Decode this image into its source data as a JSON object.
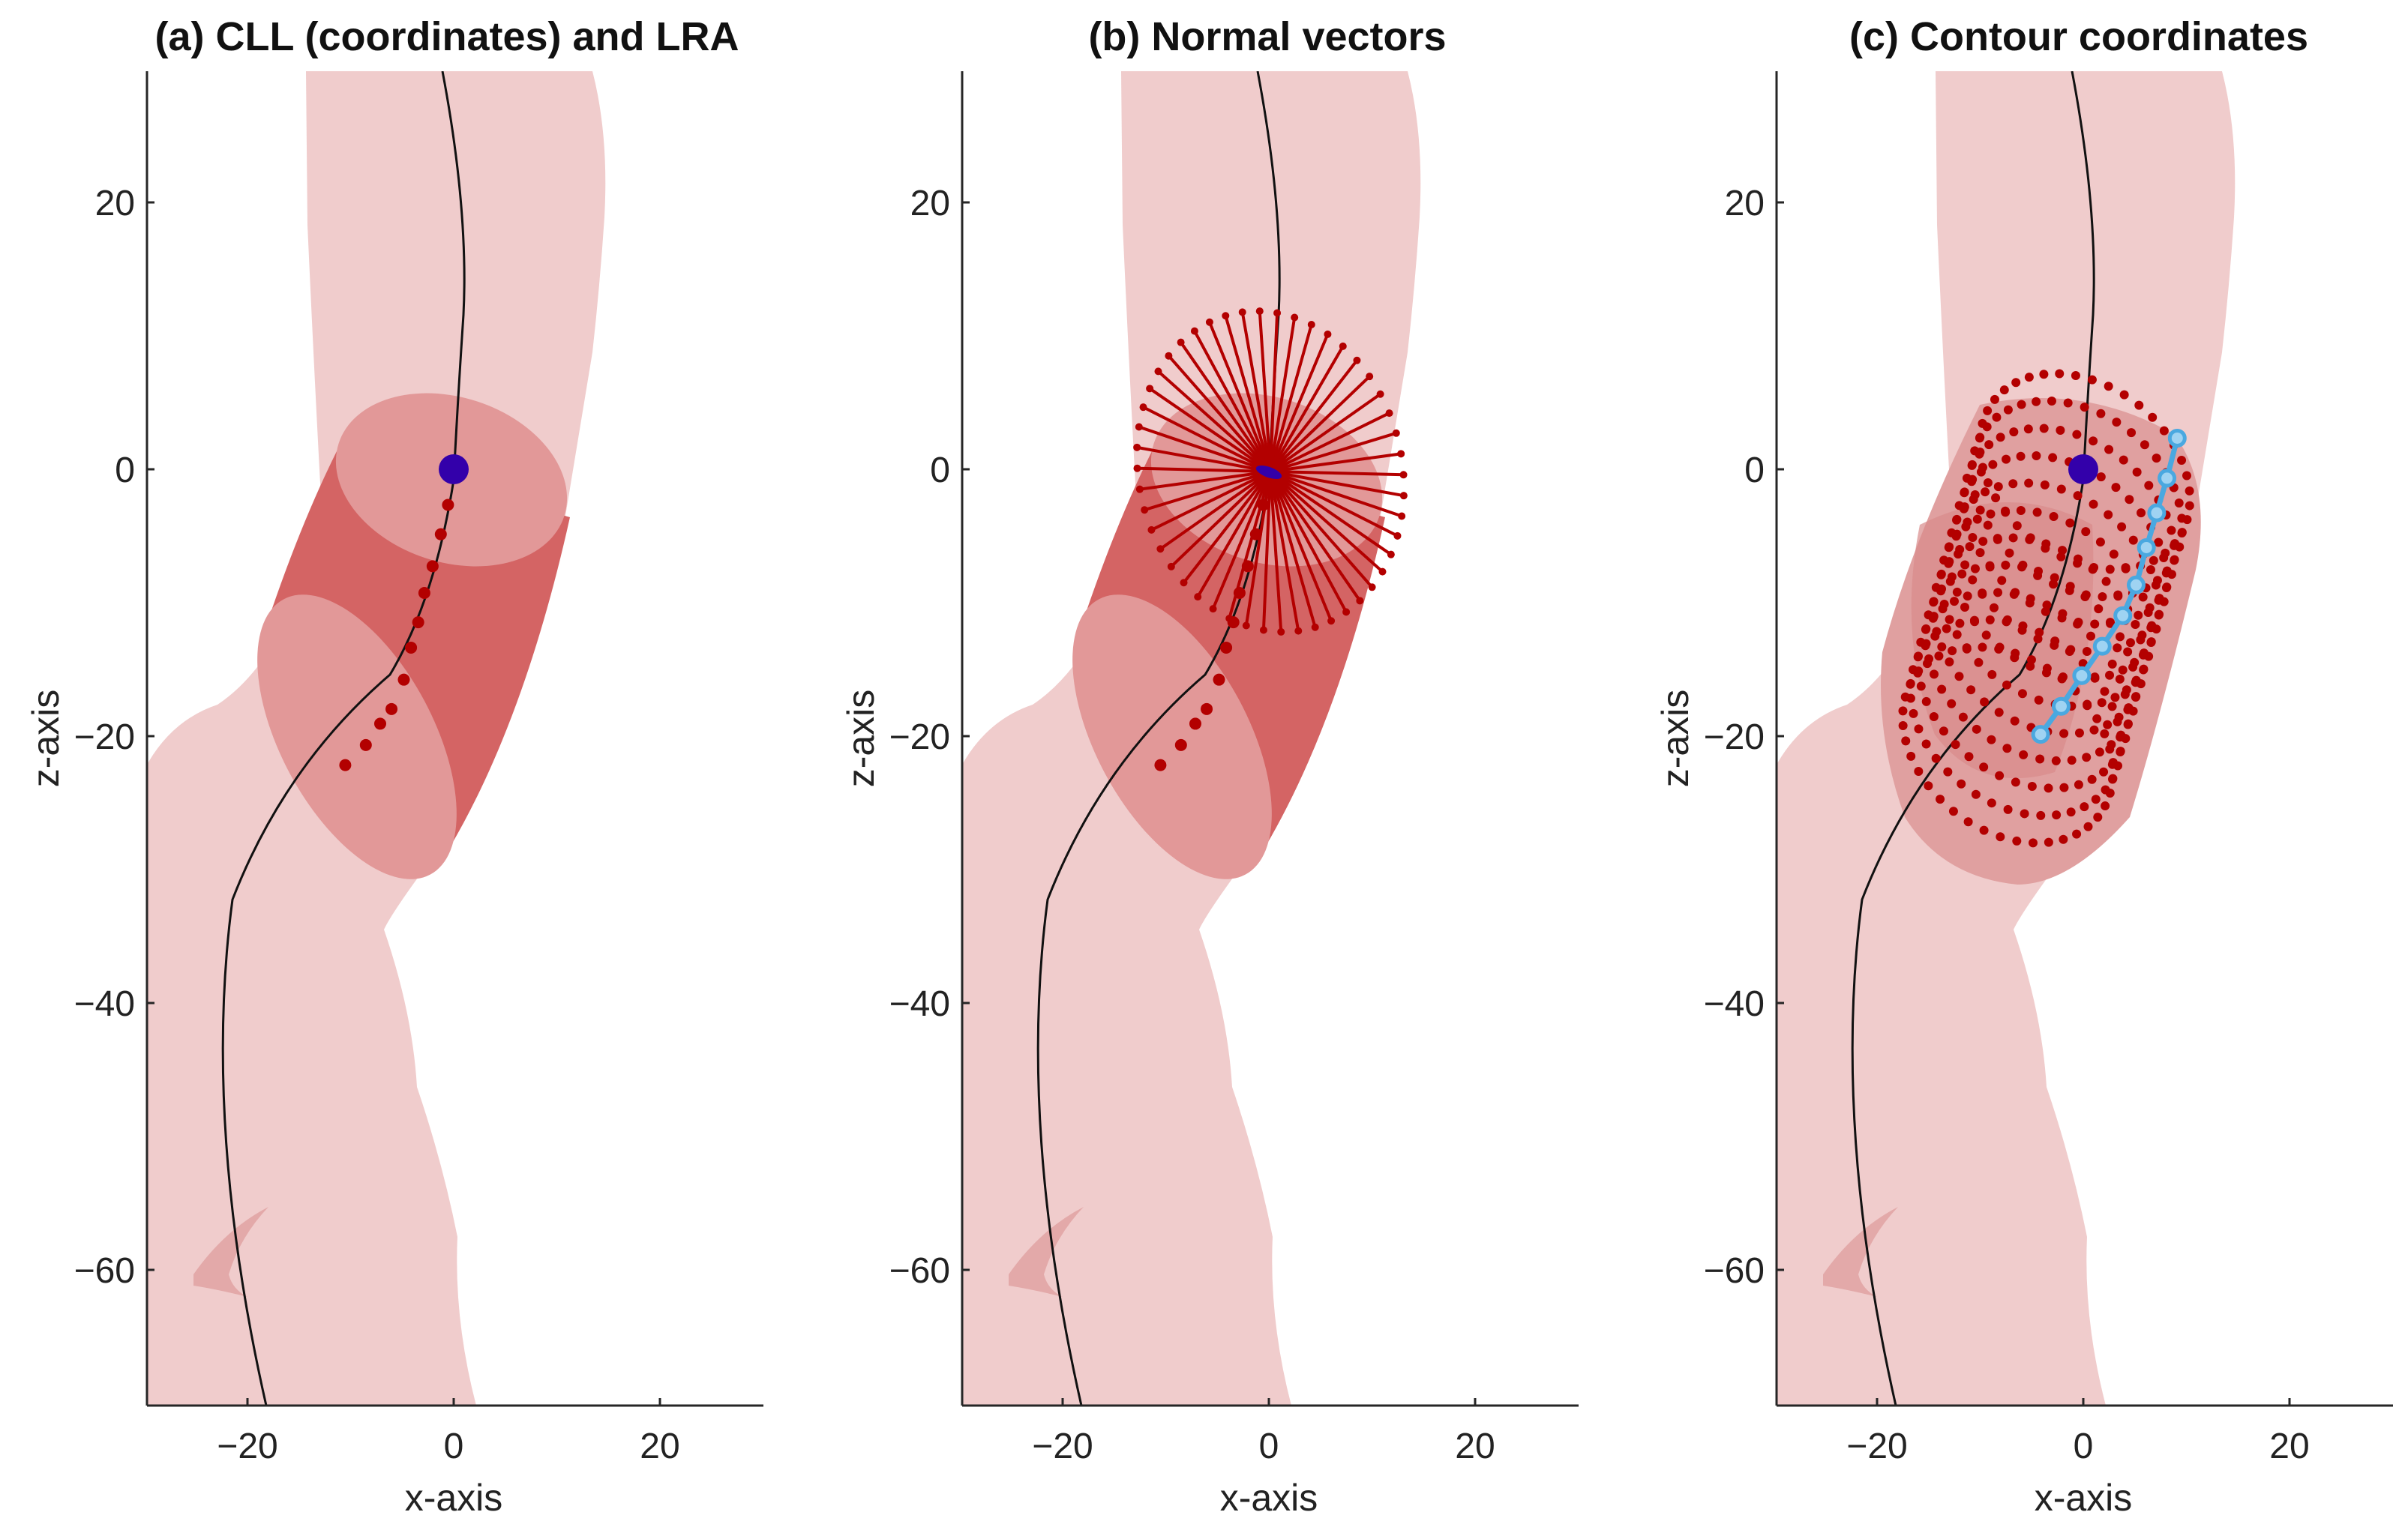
{
  "chart_data": [
    {
      "type": "scatter",
      "panel": "a",
      "title": "(a) CLL (coordinates) and LRA",
      "xlabel": "x-axis",
      "ylabel": "z-axis",
      "xlim": [
        -30,
        30
      ],
      "ylim": [
        -70,
        30
      ],
      "xticks": [
        -20,
        0,
        20
      ],
      "yticks": [
        20,
        0,
        -20,
        -40,
        -60
      ],
      "xtick_labels": [
        "−20",
        "0",
        "20"
      ],
      "ytick_labels": [
        "20",
        "0",
        "−20",
        "−40",
        "−60"
      ],
      "grid": false,
      "series": [
        {
          "name": "CLL coordinates",
          "color": "#b30000",
          "x": [
            -0.7,
            -1.4,
            -2.2,
            -3.0,
            -3.6,
            -4.3,
            -5.0,
            -6.2,
            -7.3,
            -8.7,
            -10.7
          ],
          "y": [
            -2.5,
            -4.7,
            -7.1,
            -9.1,
            -11.3,
            -13.2,
            -15.6,
            -17.8,
            -18.9,
            -20.5,
            -22.0
          ]
        },
        {
          "name": "start point",
          "color": "#3300aa",
          "x": [
            0
          ],
          "y": [
            0
          ]
        }
      ]
    },
    {
      "type": "scatter",
      "panel": "b",
      "title": "(b) Normal vectors",
      "xlabel": "x-axis",
      "ylabel": "z-axis",
      "xlim": [
        -30,
        30
      ],
      "ylim": [
        -70,
        30
      ],
      "xticks": [
        -20,
        0,
        20
      ],
      "yticks": [
        20,
        0,
        -20,
        -40,
        -60
      ],
      "xtick_labels": [
        "−20",
        "0",
        "20"
      ],
      "ytick_labels": [
        "20",
        "0",
        "−20",
        "−40",
        "−60"
      ],
      "grid": false,
      "series": [
        {
          "name": "CLL coordinates",
          "color": "#b30000",
          "x": [
            -0.7,
            -1.4,
            -2.2,
            -3.0,
            -3.6,
            -4.3,
            -5.0,
            -6.2,
            -7.3,
            -8.7,
            -10.7
          ],
          "y": [
            -2.5,
            -4.7,
            -7.1,
            -9.1,
            -11.3,
            -13.2,
            -15.6,
            -17.8,
            -18.9,
            -20.5,
            -22.0
          ]
        },
        {
          "name": "normal vectors",
          "color": "#b30000",
          "count": 48,
          "length": 13
        }
      ]
    },
    {
      "type": "scatter",
      "panel": "c",
      "title": "(c) Contour coordinates",
      "xlabel": "x-axis",
      "ylabel": "z-axis",
      "xlim": [
        -30,
        30
      ],
      "ylim": [
        -70,
        30
      ],
      "xticks": [
        -20,
        0,
        20
      ],
      "yticks": [
        20,
        0,
        -20,
        -40,
        -60
      ],
      "xtick_labels": [
        "−20",
        "0",
        "20"
      ],
      "ytick_labels": [
        "20",
        "0",
        "−20",
        "−40",
        "−60"
      ],
      "grid": false,
      "series": [
        {
          "name": "contour coordinates",
          "color": "#b30000",
          "rings": 11,
          "points_per_ring": 40
        },
        {
          "name": "contour line",
          "color": "#4aa8e0",
          "x": [
            9.0,
            8.0,
            7.0,
            6.0,
            5.0,
            3.7,
            1.7,
            -0.3,
            -2.3,
            -4.3
          ],
          "y": [
            2.5,
            -0.5,
            -3.1,
            -5.7,
            -8.5,
            -10.8,
            -13.1,
            -15.3,
            -17.6,
            -19.7
          ]
        },
        {
          "name": "start point",
          "color": "#3300aa",
          "x": [
            0
          ],
          "y": [
            0
          ]
        }
      ]
    }
  ]
}
